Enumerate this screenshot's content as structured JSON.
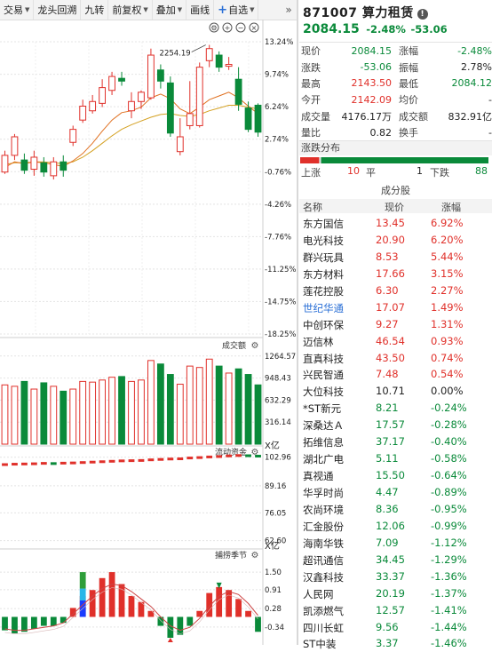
{
  "toolbar": {
    "items": [
      {
        "label": "交易",
        "dropdown": true
      },
      {
        "label": "龙头回溯",
        "dropdown": false
      },
      {
        "label": "九转",
        "dropdown": false
      },
      {
        "label": "前复权",
        "dropdown": true
      },
      {
        "label": "叠加",
        "dropdown": true
      },
      {
        "label": "画线",
        "dropdown": false
      }
    ],
    "add_label": "自选",
    "expand_icon": "double-chevron-right-icon"
  },
  "main_chart": {
    "y_ticks": [
      "13.24%",
      "9.74%",
      "6.24%",
      "2.74%",
      "-0.76%",
      "-4.26%",
      "-7.76%",
      "-11.25%",
      "-14.75%",
      "-18.25%"
    ],
    "high_marker": "2254.19",
    "icons": [
      "gear-icon",
      "plus-circle-icon",
      "minus-circle-icon",
      "close-circle-icon"
    ],
    "candles": [
      {
        "o": -0.8,
        "c": 1.0,
        "h": 1.5,
        "l": -1.0
      },
      {
        "o": 1.0,
        "c": 3.0,
        "h": 3.3,
        "l": 0.5
      },
      {
        "o": 0.5,
        "c": -0.6,
        "h": 1.2,
        "l": -1.0
      },
      {
        "o": -0.5,
        "c": 0.8,
        "h": 1.5,
        "l": -1.2
      },
      {
        "o": 0.2,
        "c": -0.8,
        "h": 0.8,
        "l": -1.3
      },
      {
        "o": -1.2,
        "c": 0.3,
        "h": 0.8,
        "l": -1.6
      },
      {
        "o": 0.3,
        "c": -0.6,
        "h": 1.0,
        "l": -1.3
      },
      {
        "o": 2.4,
        "c": 3.8,
        "h": 4.2,
        "l": 2.0
      },
      {
        "o": 4.8,
        "c": 6.3,
        "h": 7.0,
        "l": 4.5
      },
      {
        "o": 5.8,
        "c": 6.8,
        "h": 7.5,
        "l": 5.5
      },
      {
        "o": 6.6,
        "c": 8.3,
        "h": 9.2,
        "l": 6.2
      },
      {
        "o": 8.0,
        "c": 9.5,
        "h": 10.0,
        "l": 7.5
      },
      {
        "o": 9.3,
        "c": 9.0,
        "h": 10.0,
        "l": 8.5
      },
      {
        "o": 5.8,
        "c": 6.8,
        "h": 7.8,
        "l": 5.0
      },
      {
        "o": 6.8,
        "c": 7.8,
        "h": 8.0,
        "l": 6.0
      },
      {
        "o": 7.2,
        "c": 11.8,
        "h": 12.5,
        "l": 7.0
      },
      {
        "o": 10.2,
        "c": 9.0,
        "h": 10.8,
        "l": 8.2
      },
      {
        "o": 8.8,
        "c": 3.4,
        "h": 9.5,
        "l": 3.0
      },
      {
        "o": 1.4,
        "c": 3.0,
        "h": 5.0,
        "l": 1.0
      },
      {
        "o": 4.2,
        "c": 5.5,
        "h": 9.0,
        "l": 3.8
      },
      {
        "o": 4.2,
        "c": 10.5,
        "h": 11.0,
        "l": 4.0
      },
      {
        "o": 11.2,
        "c": 12.5,
        "h": 12.9,
        "l": 10.5
      },
      {
        "o": 11.8,
        "c": 10.5,
        "h": 12.2,
        "l": 10.0
      },
      {
        "o": 10.6,
        "c": 10.8,
        "h": 11.6,
        "l": 10.2
      },
      {
        "o": 9.2,
        "c": 6.5,
        "h": 10.5,
        "l": 5.8
      },
      {
        "o": 6.1,
        "c": 3.8,
        "h": 6.8,
        "l": 3.5
      },
      {
        "o": 6.4,
        "c": 3.5,
        "h": 6.6,
        "l": 3.0
      }
    ],
    "ma_fast": [
      -0.3,
      0.3,
      0.1,
      0.3,
      0.2,
      0.0,
      -0.2,
      0.4,
      1.2,
      2.3,
      3.6,
      4.8,
      5.6,
      5.8,
      6.2,
      7.2,
      7.6,
      7.1,
      6.0,
      5.5,
      6.2,
      7.0,
      7.4,
      7.8,
      7.2,
      6.3,
      5.5
    ],
    "ma_slow": [
      0.0,
      0.2,
      0.2,
      0.3,
      0.3,
      0.2,
      0.1,
      0.3,
      0.8,
      1.5,
      2.3,
      3.1,
      3.8,
      4.3,
      4.7,
      5.1,
      5.4,
      5.5,
      5.3,
      5.2,
      5.4,
      5.8,
      6.1,
      6.4,
      6.4,
      6.2,
      6.0
    ]
  },
  "volume_panel": {
    "title": "成交额",
    "y_ticks": [
      "1264.57",
      "948.43",
      "632.29",
      "316.14"
    ],
    "unit": "X亿",
    "bars": [
      850,
      830,
      900,
      790,
      880,
      830,
      760,
      790,
      900,
      890,
      920,
      960,
      970,
      900,
      920,
      1200,
      1150,
      1000,
      860,
      1120,
      1100,
      1220,
      1120,
      1020,
      1080,
      1000,
      850
    ]
  },
  "flow_panel": {
    "title": "流动资金",
    "y_ticks": [
      "102.96",
      "89.16",
      "76.05",
      "62.60"
    ],
    "unit": "X亿",
    "values": [
      99.4,
      99.6,
      99.7,
      99.8,
      100.0,
      99.9,
      100.1,
      100.2,
      100.4,
      100.6,
      100.8,
      101.0,
      101.2,
      101.3,
      101.4,
      101.7,
      101.9,
      102.1,
      102.2,
      102.6,
      102.8,
      103.1,
      103.3,
      103.6,
      103.8,
      103.7,
      103.5
    ]
  },
  "season_panel": {
    "title": "捕捞季节",
    "y_ticks": [
      "1.50",
      "0.91",
      "0.28",
      "-0.34"
    ],
    "bars": [
      -0.5,
      -0.6,
      -0.5,
      -0.4,
      -0.3,
      -0.3,
      -0.2,
      0.3,
      0.7,
      1.0,
      1.4,
      1.9,
      1.1,
      0.7,
      0.5,
      0.2,
      -0.3,
      -0.7,
      -0.6,
      -0.3,
      0.2,
      0.8,
      1.0,
      1.0,
      0.7,
      0.3,
      -0.4
    ],
    "hist": [
      -0.45,
      -0.55,
      -0.5,
      -0.4,
      -0.3,
      -0.3,
      -0.2,
      0.3,
      0.7,
      0.9,
      1.3,
      1.5,
      1.1,
      0.7,
      0.5,
      0.2,
      -0.3,
      -0.7,
      -0.6,
      -0.3,
      0.2,
      0.8,
      1.0,
      0.9,
      0.6,
      0.2,
      -0.5
    ],
    "line": [
      -0.4,
      -0.45,
      -0.45,
      -0.4,
      -0.35,
      -0.3,
      -0.2,
      0.1,
      0.4,
      0.7,
      0.95,
      1.1,
      1.05,
      0.85,
      0.6,
      0.35,
      0.0,
      -0.3,
      -0.45,
      -0.35,
      -0.05,
      0.35,
      0.7,
      0.85,
      0.75,
      0.45,
      0.05
    ]
  },
  "quote": {
    "code": "871007",
    "name": "算力租赁",
    "price": "2084.15",
    "change_pct": "-2.48%",
    "change": "-53.06",
    "rows": [
      {
        "k1": "现价",
        "v1": "2084.15",
        "c1": "green",
        "k2": "涨幅",
        "v2": "-2.48%",
        "c2": "green"
      },
      {
        "k1": "涨跌",
        "v1": "-53.06",
        "c1": "green",
        "k2": "振幅",
        "v2": "2.78%",
        "c2": "dark"
      },
      {
        "k1": "最高",
        "v1": "2143.50",
        "c1": "red",
        "k2": "最低",
        "v2": "2084.12",
        "c2": "green"
      },
      {
        "k1": "今开",
        "v1": "2142.09",
        "c1": "red",
        "k2": "均价",
        "v2": "-",
        "c2": "dark"
      },
      {
        "k1": "成交量",
        "v1": "4176.17万",
        "c1": "dark",
        "k2": "成交额",
        "v2": "832.91亿",
        "c2": "dark"
      },
      {
        "k1": "量比",
        "v1": "0.82",
        "c1": "dark",
        "k2": "换手",
        "v2": "-",
        "c2": "dark"
      }
    ]
  },
  "distribution": {
    "title": "涨跌分布",
    "up_label": "上涨",
    "up": "10",
    "flat_label": "平",
    "flat": "1",
    "down_label": "下跌",
    "down": "88",
    "colors": {
      "up": "#e0302a",
      "down": "#0a8a3a"
    }
  },
  "constituents": {
    "title": "成分股",
    "headers": {
      "name": "名称",
      "price": "现价",
      "change": "涨幅"
    },
    "rows": [
      {
        "name": "东方国信",
        "price": "13.45",
        "chg": "6.92%",
        "color": "red"
      },
      {
        "name": "电光科技",
        "price": "20.90",
        "chg": "6.20%",
        "color": "red"
      },
      {
        "name": "群兴玩具",
        "price": "8.53",
        "chg": "5.44%",
        "color": "red"
      },
      {
        "name": "东方材料",
        "price": "17.66",
        "chg": "3.15%",
        "color": "red"
      },
      {
        "name": "莲花控股",
        "price": "6.30",
        "chg": "2.27%",
        "color": "red"
      },
      {
        "name": "世纪华通",
        "price": "17.07",
        "chg": "1.49%",
        "color": "red",
        "blue": true
      },
      {
        "name": "中创环保",
        "price": "9.27",
        "chg": "1.31%",
        "color": "red"
      },
      {
        "name": "迈信林",
        "price": "46.54",
        "chg": "0.93%",
        "color": "red"
      },
      {
        "name": "直真科技",
        "price": "43.50",
        "chg": "0.74%",
        "color": "red"
      },
      {
        "name": "兴民智通",
        "price": "7.48",
        "chg": "0.54%",
        "color": "red"
      },
      {
        "name": "大位科技",
        "price": "10.71",
        "chg": "0.00%",
        "color": "dark"
      },
      {
        "name": "*ST新元",
        "price": "8.21",
        "chg": "-0.24%",
        "color": "green"
      },
      {
        "name": "深桑达Ａ",
        "price": "17.57",
        "chg": "-0.28%",
        "color": "green"
      },
      {
        "name": "拓维信息",
        "price": "37.17",
        "chg": "-0.40%",
        "color": "green"
      },
      {
        "name": "湖北广电",
        "price": "5.11",
        "chg": "-0.58%",
        "color": "green"
      },
      {
        "name": "真视通",
        "price": "15.50",
        "chg": "-0.64%",
        "color": "green"
      },
      {
        "name": "华孚时尚",
        "price": "4.47",
        "chg": "-0.89%",
        "color": "green"
      },
      {
        "name": "农尚环境",
        "price": "8.36",
        "chg": "-0.95%",
        "color": "green"
      },
      {
        "name": "汇金股份",
        "price": "12.06",
        "chg": "-0.99%",
        "color": "green"
      },
      {
        "name": "海南华铁",
        "price": "7.09",
        "chg": "-1.12%",
        "color": "green"
      },
      {
        "name": "超讯通信",
        "price": "34.45",
        "chg": "-1.29%",
        "color": "green"
      },
      {
        "name": "汉鑫科技",
        "price": "33.37",
        "chg": "-1.36%",
        "color": "green"
      },
      {
        "name": "人民网",
        "price": "20.19",
        "chg": "-1.37%",
        "color": "green"
      },
      {
        "name": "凯添燃气",
        "price": "12.57",
        "chg": "-1.41%",
        "color": "green"
      },
      {
        "name": "四川长虹",
        "price": "9.56",
        "chg": "-1.44%",
        "color": "green"
      },
      {
        "name": "ST中装",
        "price": "3.37",
        "chg": "-1.46%",
        "color": "green"
      }
    ]
  },
  "colors": {
    "up": "#e0302a",
    "down": "#0a8a3a",
    "ma_fast": "#e07020",
    "ma_slow": "#d4a020",
    "accent": "#2a6fd6"
  }
}
